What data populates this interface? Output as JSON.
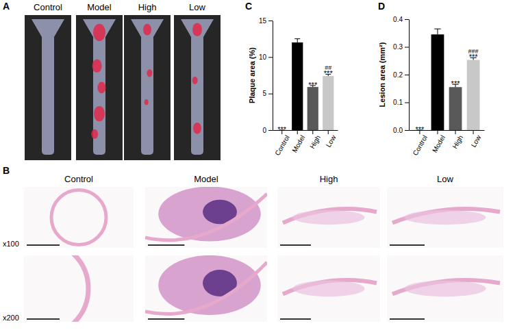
{
  "figure": {
    "panel_labels": [
      "A",
      "B",
      "C",
      "D"
    ],
    "groups": [
      "Control",
      "Model",
      "High",
      "Low"
    ],
    "magnifications": [
      "x100",
      "x200"
    ]
  },
  "chart_data": [
    {
      "type": "bar",
      "y_label": "Plaque area (%)",
      "categories": [
        "Control",
        "Model",
        "High",
        "Low"
      ],
      "values": [
        0,
        12.0,
        5.9,
        7.4
      ],
      "errors": [
        0,
        0.5,
        0.2,
        0.25
      ],
      "colors": [
        "#000000",
        "#000000",
        "#595959",
        "#c8c8c8"
      ],
      "sig_vs_model": [
        "***",
        null,
        "***",
        "***"
      ],
      "sig_vs_high": [
        null,
        null,
        null,
        "##"
      ],
      "ylim": [
        0,
        15
      ],
      "yticks": [
        0,
        5,
        10,
        15
      ]
    },
    {
      "type": "bar",
      "y_label": "Lesion area (mm²)",
      "categories": [
        "Control",
        "Model",
        "High",
        "Low"
      ],
      "values": [
        0,
        0.345,
        0.155,
        0.253
      ],
      "errors": [
        0,
        0.02,
        0.01,
        0.008
      ],
      "colors": [
        "#000000",
        "#000000",
        "#595959",
        "#c8c8c8"
      ],
      "sig_vs_model": [
        "***",
        null,
        "***",
        "***"
      ],
      "sig_vs_high": [
        null,
        null,
        null,
        "###"
      ],
      "ylim": [
        0,
        0.4
      ],
      "yticks": [
        {
          "value": 0,
          "label": "0.0"
        },
        0.1,
        0.2,
        0.3,
        0.4
      ]
    }
  ]
}
